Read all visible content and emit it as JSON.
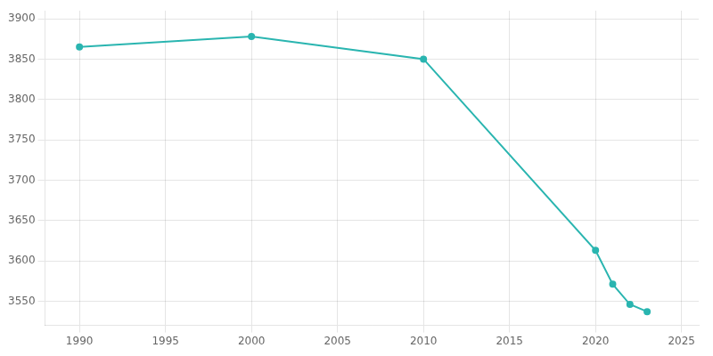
{
  "chart_data": {
    "type": "line",
    "x": [
      1990,
      2000,
      2010,
      2020,
      2021,
      2022,
      2023
    ],
    "values": [
      3865,
      3878,
      3850,
      3613,
      3571,
      3546,
      3537
    ],
    "color": "#2ab5b0",
    "marker": "circle",
    "xlim": [
      1988,
      2026
    ],
    "ylim": [
      3520,
      3910
    ],
    "xticks": [
      1990,
      1995,
      2000,
      2005,
      2010,
      2015,
      2020,
      2025
    ],
    "yticks": [
      3550,
      3600,
      3650,
      3700,
      3750,
      3800,
      3850,
      3900
    ],
    "grid": true
  }
}
